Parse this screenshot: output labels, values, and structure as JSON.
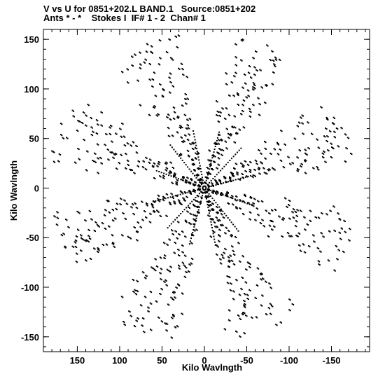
{
  "chart_data": {
    "type": "scatter",
    "title": "V vs U for 0851+202.L BAND.1   Source:0851+202",
    "subtitle": "Ants * - *    Stokes I  IF# 1 - 2  Chan# 1",
    "xlabel": "Kilo Wavlngth",
    "ylabel": "Kilo Wavlngth",
    "xlim": [
      190,
      -195
    ],
    "ylim": [
      -165,
      160
    ],
    "x_ticks": [
      150,
      100,
      50,
      0,
      -50,
      -100,
      -150
    ],
    "y_ticks": [
      150,
      100,
      50,
      0,
      -50,
      -100,
      -150
    ],
    "grid": false,
    "series": [
      {
        "arms": 8,
        "max_radius": 185,
        "description_only_for_script": false
      }
    ],
    "point_color": "#000000"
  }
}
